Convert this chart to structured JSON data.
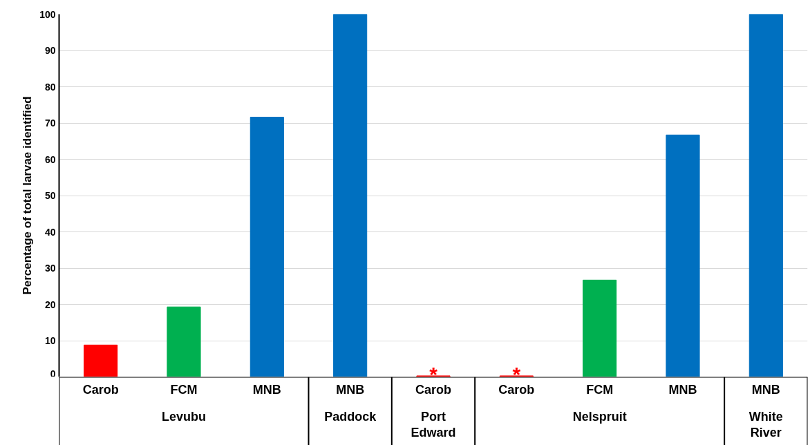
{
  "chart_data": {
    "type": "bar",
    "ylabel": "Percentage of total larvae identified",
    "categories": [
      "Carob",
      "FCM",
      "MNB",
      "MNB",
      "Carob",
      "Carob",
      "FCM",
      "MNB",
      "MNB"
    ],
    "series": [
      {
        "name": "Levubu",
        "colors": [
          "#ff0000",
          "#00b050",
          "#0070c0",
          null,
          null,
          null,
          null,
          null,
          null
        ],
        "values": [
          8.8,
          19.3,
          71.6,
          null,
          null,
          null,
          null,
          null,
          null
        ]
      },
      {
        "name": "Paddock",
        "colors": [
          null,
          null,
          null,
          "#0070c0",
          null,
          null,
          null,
          null,
          null
        ],
        "values": [
          null,
          null,
          null,
          100,
          null,
          null,
          null,
          null,
          null
        ]
      },
      {
        "name": "Port Edward",
        "colors": [
          null,
          null,
          null,
          null,
          "#ff0000",
          null,
          null,
          null,
          null
        ],
        "values": [
          null,
          null,
          null,
          null,
          0.3,
          null,
          null,
          null,
          null
        ],
        "value_labels": [
          null,
          null,
          null,
          null,
          "*",
          null,
          null,
          null,
          null
        ]
      },
      {
        "name": "Nelspruit",
        "colors": [
          null,
          null,
          null,
          null,
          null,
          "#ff0000",
          "#00b050",
          "#0070c0",
          null
        ],
        "values": [
          null,
          null,
          null,
          null,
          null,
          0.3,
          26.7,
          66.7,
          null
        ],
        "value_labels": [
          null,
          null,
          null,
          null,
          null,
          "*",
          null,
          null,
          null
        ]
      },
      {
        "name": "White River",
        "colors": [
          null,
          null,
          null,
          null,
          null,
          null,
          null,
          null,
          "#0070c0"
        ],
        "values": [
          null,
          null,
          null,
          null,
          null,
          null,
          null,
          null,
          100
        ]
      }
    ],
    "ylim": [
      0,
      100
    ],
    "yticks": [
      0,
      10,
      20,
      30,
      40,
      50,
      60,
      70,
      80,
      90,
      100
    ],
    "grid": "y"
  }
}
